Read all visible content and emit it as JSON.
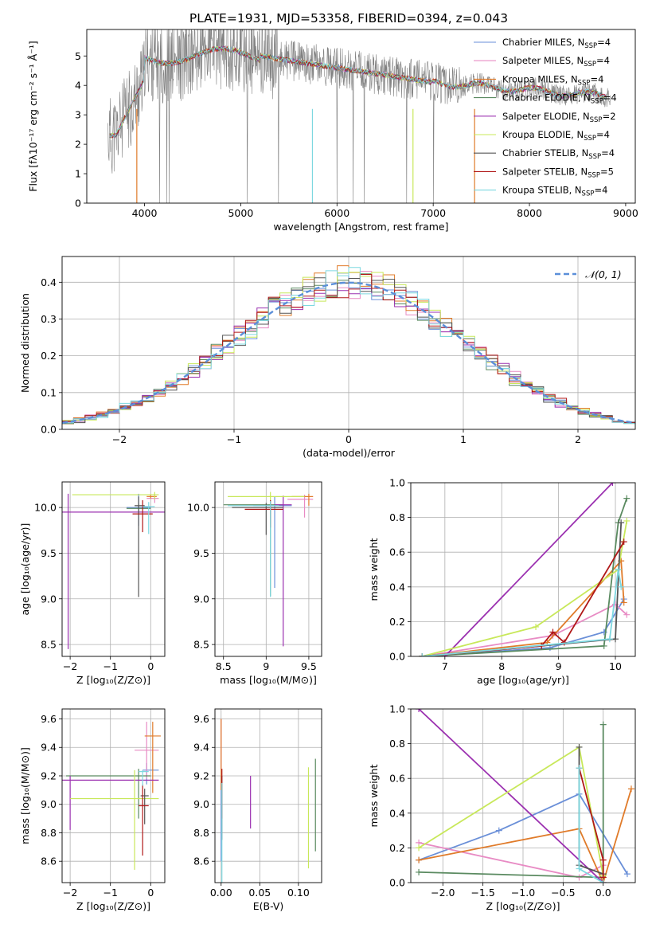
{
  "chart_data": [
    {
      "id": "spectrum",
      "type": "line",
      "title": "PLATE=1931, MJD=53358, FIBERID=0394, z=0.043",
      "xlabel": "wavelength [Angstrom, rest frame]",
      "ylabel": "Flux [fλ10⁻¹⁷ erg cm⁻² s⁻¹ Å⁻¹]",
      "xlim": [
        3400,
        9100
      ],
      "ylim": [
        0,
        5.9
      ],
      "xticks": [
        4000,
        5000,
        6000,
        7000,
        8000,
        9000
      ],
      "yticks": [
        0,
        1,
        2,
        3,
        4,
        5
      ],
      "legend_position": "top-right",
      "series": [
        {
          "name": "Chabrier MILES, N_SSP=4",
          "color": "#6a8fd8"
        },
        {
          "name": "Salpeter MILES, N_SSP=4",
          "color": "#e88bc4"
        },
        {
          "name": "Kroupa MILES, N_SSP=4",
          "color": "#e07b2a"
        },
        {
          "name": "Chabrier ELODIE, N_SSP=4",
          "color": "#5a8a60"
        },
        {
          "name": "Salpeter ELODIE, N_SSP=2",
          "color": "#9b30b0"
        },
        {
          "name": "Kroupa ELODIE, N_SSP=4",
          "color": "#c8e85a"
        },
        {
          "name": "Chabrier STELIB, N_SSP=4",
          "color": "#555555"
        },
        {
          "name": "Salpeter STELIB, N_SSP=5",
          "color": "#b01818"
        },
        {
          "name": "Kroupa STELIB, N_SSP=4",
          "color": "#7dd8e0"
        }
      ],
      "data_color": "#808080"
    },
    {
      "id": "residuals",
      "type": "bar",
      "xlabel": "(data-model)/error",
      "ylabel": "Normed distribution",
      "xlim": [
        -2.5,
        2.5
      ],
      "ylim": [
        0,
        0.47
      ],
      "xticks": [
        -2,
        -1,
        0,
        1,
        2
      ],
      "yticks": [
        0.0,
        0.1,
        0.2,
        0.3,
        0.4
      ],
      "grid": true,
      "legend_label": "𝒩(0, 1)",
      "legend_position": "top-right",
      "gauss_color": "#5b8fd9"
    },
    {
      "id": "age_vs_Z",
      "type": "scatter",
      "xlabel": "Z [log₁₀(Z/Z⊙)]",
      "ylabel": "age  [log₁₀(age/yr)]",
      "xlim": [
        -2.2,
        0.35
      ],
      "ylim": [
        8.37,
        10.28
      ],
      "xticks": [
        -2,
        -1,
        0
      ],
      "yticks": [
        8.5,
        9.0,
        9.5,
        10.0
      ],
      "grid": true
    },
    {
      "id": "age_vs_mass",
      "type": "scatter",
      "xlabel": "mass [log₁₀(M/M⊙)]",
      "xlim": [
        8.4,
        9.65
      ],
      "ylim": [
        8.37,
        10.28
      ],
      "xticks": [
        8.5,
        9.0,
        9.5
      ],
      "yticks": [
        8.5,
        9.0,
        9.5,
        10.0
      ],
      "grid": true
    },
    {
      "id": "weight_vs_age",
      "type": "line",
      "xlabel": "age  [log₁₀(age/yr)]",
      "ylabel": "mass weight",
      "xlim": [
        6.4,
        10.35
      ],
      "ylim": [
        0,
        1.0
      ],
      "xticks": [
        7,
        8,
        9,
        10
      ],
      "yticks": [
        0.0,
        0.2,
        0.4,
        0.6,
        0.8,
        1.0
      ],
      "grid": true
    },
    {
      "id": "mass_vs_Z",
      "type": "scatter",
      "xlabel": "Z [log₁₀(Z/Z⊙)]",
      "ylabel": "mass [log₁₀(M/M⊙)]",
      "xlim": [
        -2.2,
        0.35
      ],
      "ylim": [
        8.45,
        9.67
      ],
      "xticks": [
        -2,
        -1,
        0
      ],
      "yticks": [
        8.6,
        8.8,
        9.0,
        9.2,
        9.4,
        9.6
      ],
      "grid": true
    },
    {
      "id": "mass_vs_EBV",
      "type": "scatter",
      "xlabel": "E(B-V)",
      "xlim": [
        -0.008,
        0.13
      ],
      "ylim": [
        8.45,
        9.67
      ],
      "xticks": [
        0.0,
        0.05,
        0.1
      ],
      "xticklabels": [
        "0.00",
        "0.05",
        "0.10"
      ],
      "yticks": [
        8.6,
        8.8,
        9.0,
        9.2,
        9.4,
        9.6
      ],
      "grid": true
    },
    {
      "id": "weight_vs_Z",
      "type": "line",
      "xlabel": "Z [log₁₀(Z/Z⊙)]",
      "ylabel": "mass weight",
      "xlim": [
        -2.4,
        0.4
      ],
      "ylim": [
        0,
        1.0
      ],
      "xticks": [
        -2.0,
        -1.5,
        -1.0,
        -0.5,
        0.0
      ],
      "xticklabels": [
        "−2.0",
        "−1.5",
        "−1.0",
        "−0.5",
        "0.0"
      ],
      "yticks": [
        0.0,
        0.2,
        0.4,
        0.6,
        0.8,
        1.0
      ],
      "grid": true
    }
  ]
}
